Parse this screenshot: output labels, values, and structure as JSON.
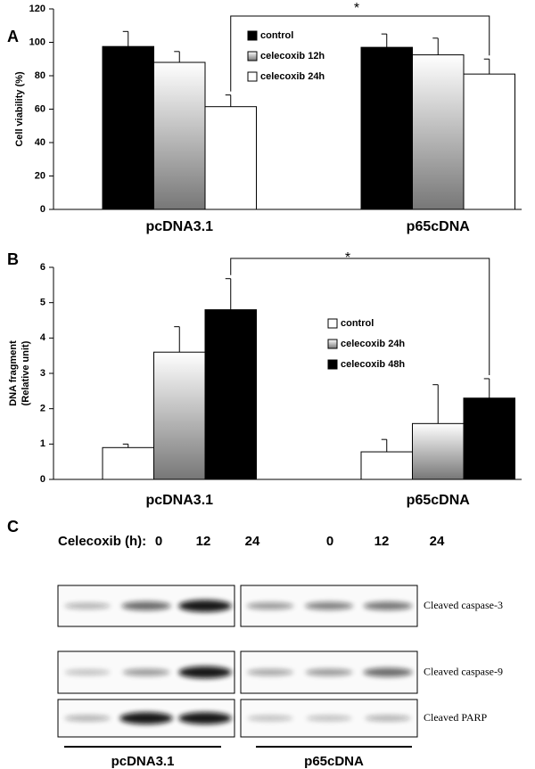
{
  "chart_data": [
    {
      "type": "bar",
      "panel": "A",
      "ylabel": [
        "Cell viability (%)"
      ],
      "categories": [
        "pcDNA3.1",
        "p65cDNA"
      ],
      "series": [
        {
          "name": "control",
          "color": "#000000",
          "values": [
            97.5,
            97
          ],
          "errors": [
            9,
            8
          ]
        },
        {
          "name": "celecoxib 12h",
          "color": "gradient",
          "values": [
            88,
            92.5
          ],
          "errors": [
            6.5,
            10
          ]
        },
        {
          "name": "celecoxib 24h",
          "color": "#ffffff",
          "values": [
            61.5,
            81
          ],
          "errors": [
            7,
            9
          ]
        }
      ],
      "ylim": [
        0,
        120
      ],
      "yticks": [
        0,
        20,
        40,
        60,
        80,
        100,
        120
      ],
      "significance": "*"
    },
    {
      "type": "bar",
      "panel": "B",
      "ylabel": [
        "DNA fragment",
        "(Relative unit)"
      ],
      "categories": [
        "pcDNA3.1",
        "p65cDNA"
      ],
      "series": [
        {
          "name": "control",
          "color": "#ffffff",
          "values": [
            0.9,
            0.78
          ],
          "errors": [
            0.1,
            0.35
          ]
        },
        {
          "name": "celecoxib 24h",
          "color": "gradient",
          "values": [
            3.6,
            1.58
          ],
          "errors": [
            0.72,
            1.1
          ]
        },
        {
          "name": "celecoxib 48h",
          "color": "#000000",
          "values": [
            4.8,
            2.3
          ],
          "errors": [
            0.88,
            0.55
          ]
        }
      ],
      "ylim": [
        0,
        6
      ],
      "yticks": [
        0,
        1,
        2,
        3,
        4,
        5,
        6
      ],
      "significance": "*"
    }
  ],
  "blot": {
    "panel": "C",
    "header": "Celecoxib (h):",
    "timepoints": [
      "0",
      "12",
      "24",
      "0",
      "12",
      "24"
    ],
    "bands": [
      "Cleaved caspase-3",
      "Cleaved caspase-9",
      "Cleaved PARP"
    ],
    "groups": [
      "pcDNA3.1",
      "p65cDNA"
    ]
  }
}
